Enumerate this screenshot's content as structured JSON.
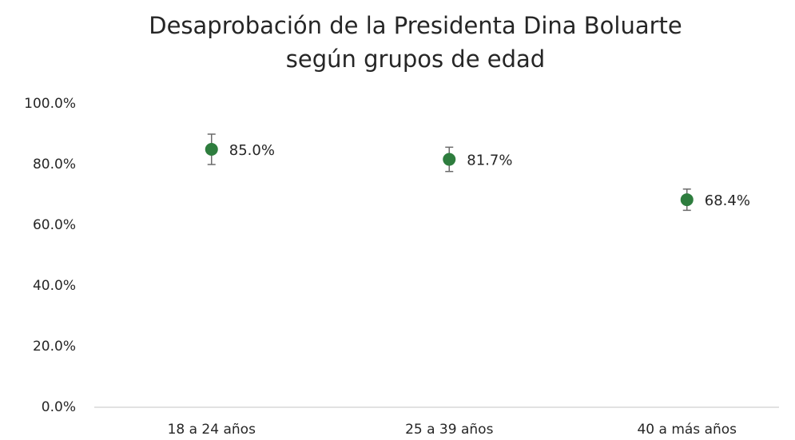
{
  "chart_data": {
    "type": "errorbar",
    "title": [
      "Desaprobación de la Presidenta Dina Boluarte",
      "según grupos de edad"
    ],
    "categories": [
      "18 a 24 años",
      "25 a 39 años",
      "40 a más años"
    ],
    "values": [
      85.0,
      81.7,
      68.4
    ],
    "errors": [
      5,
      4,
      3.5
    ],
    "value_labels": [
      "85.0%",
      "81.7%",
      "68.4%"
    ],
    "color": "#2e7d3e",
    "error_color": "#6b6b6b",
    "ylim": [
      0,
      100
    ],
    "yticks": [
      {
        "value": 0,
        "label": "0.0%"
      },
      {
        "value": 20,
        "label": "20.0%"
      },
      {
        "value": 40,
        "label": "40.0%"
      },
      {
        "value": 60,
        "label": "60.0%"
      },
      {
        "value": 80,
        "label": "80.0%"
      },
      {
        "value": 100,
        "label": "100.0%"
      }
    ],
    "grid": false
  }
}
